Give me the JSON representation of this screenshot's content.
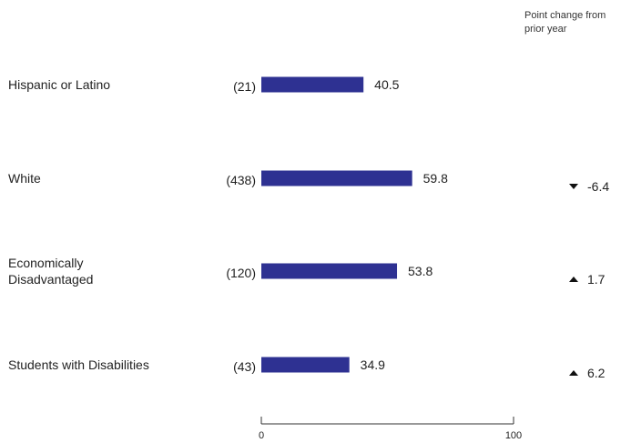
{
  "header": {
    "change_title": "Point change from prior year"
  },
  "chart_data": {
    "type": "bar",
    "orientation": "horizontal",
    "bar_color": "#2e3192",
    "xlim": [
      0,
      100
    ],
    "x_ticks": [
      "0",
      "100"
    ],
    "rows": [
      {
        "category": [
          "Hispanic or Latino"
        ],
        "n": "(21)",
        "value": 40.5,
        "change": null
      },
      {
        "category": [
          "White"
        ],
        "n": "(438)",
        "value": 59.8,
        "change": {
          "direction": "down",
          "text": "-6.4"
        }
      },
      {
        "category": [
          "Economically",
          "Disadvantaged"
        ],
        "n": "(120)",
        "value": 53.8,
        "change": {
          "direction": "up",
          "text": "1.7"
        }
      },
      {
        "category": [
          "Students with Disabilities"
        ],
        "n": "(43)",
        "value": 34.9,
        "change": {
          "direction": "up",
          "text": "6.2"
        }
      }
    ]
  }
}
